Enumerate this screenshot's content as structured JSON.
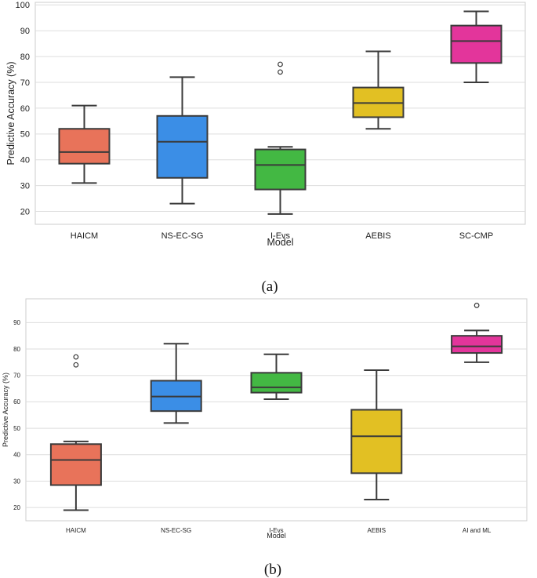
{
  "chart_data": [
    {
      "type": "box",
      "caption": "(a)",
      "xlabel": "Model",
      "ylabel": "Predictive Accuracy (%)",
      "ylim": [
        15,
        101
      ],
      "yticks": [
        20,
        30,
        40,
        50,
        60,
        70,
        80,
        90,
        100
      ],
      "grid": "horizontal",
      "categories": [
        "HAICM",
        "NS-EC-SG",
        "I-Evs",
        "AEBIS",
        "SC-CMP"
      ],
      "colors": [
        "#e8735a",
        "#3b8ee6",
        "#43b843",
        "#e2c023",
        "#e3359b"
      ],
      "boxes": [
        {
          "min": 31,
          "q1": 38.5,
          "median": 43,
          "q3": 52,
          "max": 61,
          "outliers": []
        },
        {
          "min": 23,
          "q1": 33,
          "median": 47,
          "q3": 57,
          "max": 72,
          "outliers": []
        },
        {
          "min": 19,
          "q1": 28.5,
          "median": 38,
          "q3": 44,
          "max": 45,
          "outliers": [
            74,
            77
          ]
        },
        {
          "min": 52,
          "q1": 56.5,
          "median": 62,
          "q3": 68,
          "max": 82,
          "outliers": []
        },
        {
          "min": 70,
          "q1": 77.5,
          "median": 86,
          "q3": 92,
          "max": 97.5,
          "outliers": []
        }
      ]
    },
    {
      "type": "box",
      "caption": "(b)",
      "xlabel": "Model",
      "ylabel": "Predictive Accuracy (%)",
      "ylim": [
        15,
        99
      ],
      "yticks": [
        20,
        30,
        40,
        50,
        60,
        70,
        80,
        90
      ],
      "grid": "horizontal",
      "categories": [
        "HAICM",
        "NS-EC-SG",
        "I-Evs",
        "AEBIS",
        "AI and ML"
      ],
      "colors": [
        "#e8735a",
        "#3b8ee6",
        "#43b843",
        "#e2c023",
        "#e3359b"
      ],
      "boxes": [
        {
          "min": 19,
          "q1": 28.5,
          "median": 38,
          "q3": 44,
          "max": 45,
          "outliers": [
            74,
            77
          ]
        },
        {
          "min": 52,
          "q1": 56.5,
          "median": 62,
          "q3": 68,
          "max": 82,
          "outliers": []
        },
        {
          "min": 61,
          "q1": 63.5,
          "median": 65.5,
          "q3": 71,
          "max": 78,
          "outliers": []
        },
        {
          "min": 23,
          "q1": 33,
          "median": 47,
          "q3": 57,
          "max": 72,
          "outliers": []
        },
        {
          "min": 75,
          "q1": 78.5,
          "median": 81,
          "q3": 85,
          "max": 87,
          "outliers": [
            96.5
          ]
        }
      ]
    }
  ]
}
